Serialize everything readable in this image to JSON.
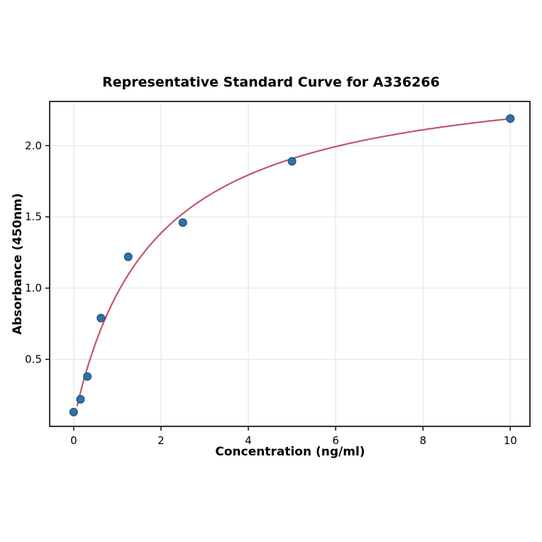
{
  "chart_data": {
    "type": "scatter",
    "title": "Representative Standard Curve for A336266",
    "xlabel": "Concentration (ng/ml)",
    "ylabel": "Absorbance (450nm)",
    "points": {
      "x": [
        0,
        0.156,
        0.313,
        0.625,
        1.25,
        2.5,
        5,
        10
      ],
      "y": [
        0.13,
        0.22,
        0.38,
        0.79,
        1.22,
        1.46,
        1.89,
        2.19
      ]
    },
    "fit_curve": {
      "model": "y = c + vmax*x/(km+x)",
      "c": 0.07,
      "vmax": 2.5,
      "km": 1.8,
      "x_start": 0.08,
      "x_end": 10,
      "color": "#c2566a"
    },
    "xticks": [
      0,
      2,
      4,
      6,
      8,
      10
    ],
    "xtick_labels": [
      "0",
      "2",
      "4",
      "6",
      "8",
      "10"
    ],
    "yticks": [
      0.5,
      1.0,
      1.5,
      2.0
    ],
    "ytick_labels": [
      "0.5",
      "1.0",
      "1.5",
      "2.0"
    ],
    "xlim": [
      -0.55,
      10.45
    ],
    "ylim": [
      0.03,
      2.31
    ],
    "grid": true,
    "legend": "none",
    "point_color": "#2f71a8",
    "point_edge_color": "#1c4666",
    "grid_color": "#e3e3e3",
    "axis_color": "#000000"
  }
}
